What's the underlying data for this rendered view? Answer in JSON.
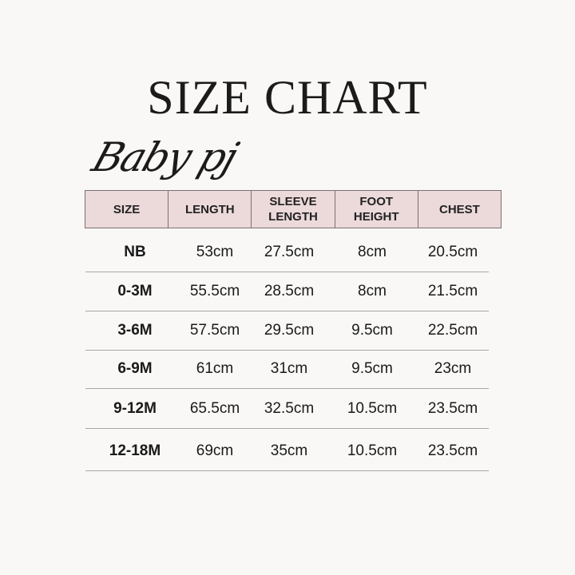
{
  "title": "SIZE CHART",
  "subtitle": "Baby pj",
  "colors": {
    "header_bg": "#ecd9da",
    "background": "#f9f8f6"
  },
  "table": {
    "headers": [
      "SIZE",
      "LENGTH",
      "SLEEVE LENGTH",
      "FOOT HEIGHT",
      "CHEST"
    ],
    "rows": [
      [
        "NB",
        "53cm",
        "27.5cm",
        "8cm",
        "20.5cm"
      ],
      [
        "0-3M",
        "55.5cm",
        "28.5cm",
        "8cm",
        "21.5cm"
      ],
      [
        "3-6M",
        "57.5cm",
        "29.5cm",
        "9.5cm",
        "22.5cm"
      ],
      [
        "6-9M",
        "61cm",
        "31cm",
        "9.5cm",
        "23cm"
      ],
      [
        "9-12M",
        "65.5cm",
        "32.5cm",
        "10.5cm",
        "23.5cm"
      ],
      [
        "12-18M",
        "69cm",
        "35cm",
        "10.5cm",
        "23.5cm"
      ]
    ]
  }
}
